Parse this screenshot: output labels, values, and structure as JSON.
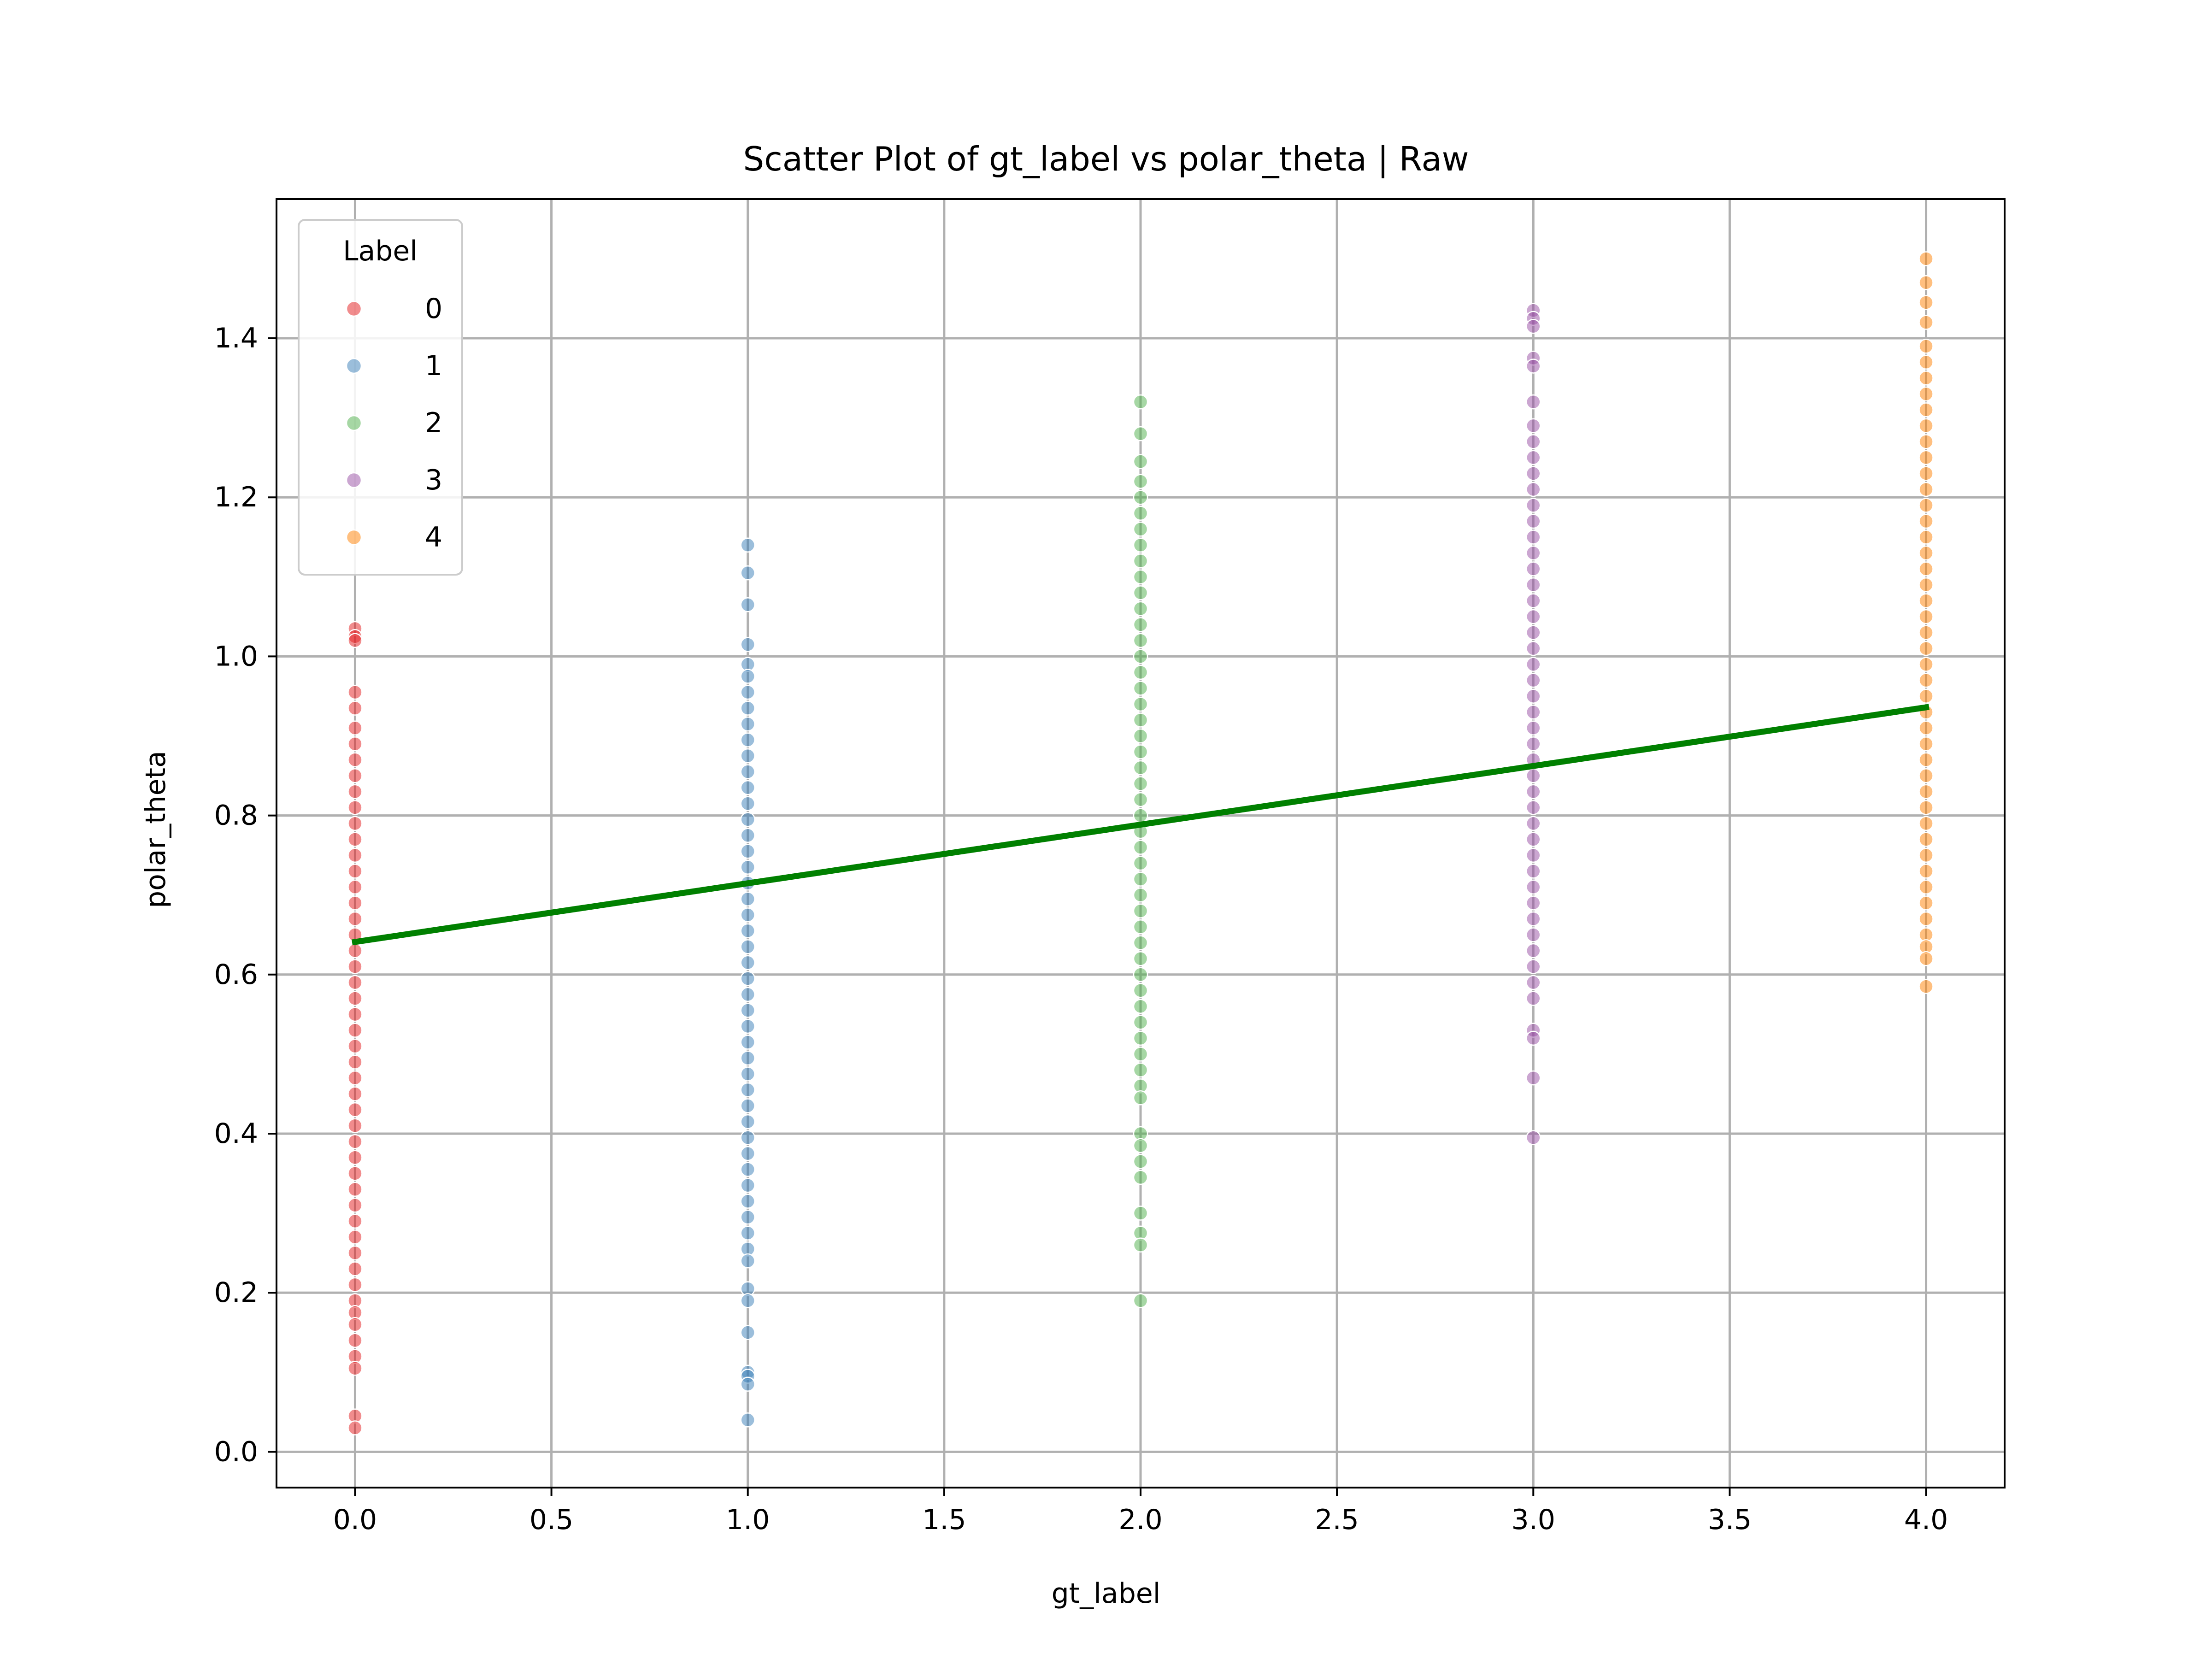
{
  "chart_data": {
    "type": "scatter",
    "title": "Scatter Plot of gt_label vs polar_theta | Raw",
    "xlabel": "gt_label",
    "ylabel": "polar_theta",
    "xlim": [
      -0.2,
      4.2
    ],
    "ylim": [
      -0.045,
      1.575
    ],
    "xticks": [
      0.0,
      0.5,
      1.0,
      1.5,
      2.0,
      2.5,
      3.0,
      3.5,
      4.0
    ],
    "xtick_labels": [
      "0.0",
      "0.5",
      "1.0",
      "1.5",
      "2.0",
      "2.5",
      "3.0",
      "3.5",
      "4.0"
    ],
    "yticks": [
      0.0,
      0.2,
      0.4,
      0.6,
      0.8,
      1.0,
      1.2,
      1.4
    ],
    "ytick_labels": [
      "0.0",
      "0.2",
      "0.4",
      "0.6",
      "0.8",
      "1.0",
      "1.2",
      "1.4"
    ],
    "grid": true,
    "legend": {
      "title": "Label",
      "placement": "top-left"
    },
    "series": [
      {
        "name": "0",
        "color": "#e41a1c",
        "x": 0,
        "y": [
          1.035,
          1.025,
          1.02,
          0.955,
          0.935,
          0.91,
          0.89,
          0.87,
          0.85,
          0.83,
          0.81,
          0.79,
          0.77,
          0.75,
          0.73,
          0.71,
          0.69,
          0.67,
          0.65,
          0.63,
          0.61,
          0.59,
          0.57,
          0.55,
          0.53,
          0.51,
          0.49,
          0.47,
          0.45,
          0.43,
          0.41,
          0.39,
          0.37,
          0.35,
          0.33,
          0.31,
          0.29,
          0.27,
          0.25,
          0.23,
          0.21,
          0.19,
          0.175,
          0.16,
          0.14,
          0.12,
          0.105,
          0.045,
          0.03
        ]
      },
      {
        "name": "1",
        "color": "#377eb8",
        "x": 1,
        "y": [
          1.14,
          1.105,
          1.065,
          1.015,
          0.99,
          0.975,
          0.955,
          0.935,
          0.915,
          0.895,
          0.875,
          0.855,
          0.835,
          0.815,
          0.795,
          0.775,
          0.755,
          0.735,
          0.715,
          0.695,
          0.675,
          0.655,
          0.635,
          0.615,
          0.595,
          0.575,
          0.555,
          0.535,
          0.515,
          0.495,
          0.475,
          0.455,
          0.435,
          0.415,
          0.395,
          0.375,
          0.355,
          0.335,
          0.315,
          0.295,
          0.275,
          0.255,
          0.24,
          0.205,
          0.19,
          0.15,
          0.1,
          0.095,
          0.085,
          0.04
        ]
      },
      {
        "name": "2",
        "color": "#4daf4a",
        "x": 2,
        "y": [
          1.32,
          1.28,
          1.245,
          1.22,
          1.2,
          1.18,
          1.16,
          1.14,
          1.12,
          1.1,
          1.08,
          1.06,
          1.04,
          1.02,
          1.0,
          0.98,
          0.96,
          0.94,
          0.92,
          0.9,
          0.88,
          0.86,
          0.84,
          0.82,
          0.8,
          0.78,
          0.76,
          0.74,
          0.72,
          0.7,
          0.68,
          0.66,
          0.64,
          0.62,
          0.6,
          0.58,
          0.56,
          0.54,
          0.52,
          0.5,
          0.48,
          0.46,
          0.445,
          0.4,
          0.385,
          0.365,
          0.345,
          0.3,
          0.275,
          0.26,
          0.19
        ]
      },
      {
        "name": "3",
        "color": "#984ea3",
        "x": 3,
        "y": [
          1.435,
          1.425,
          1.415,
          1.375,
          1.365,
          1.32,
          1.29,
          1.27,
          1.25,
          1.23,
          1.21,
          1.19,
          1.17,
          1.15,
          1.13,
          1.11,
          1.09,
          1.07,
          1.05,
          1.03,
          1.01,
          0.99,
          0.97,
          0.95,
          0.93,
          0.91,
          0.89,
          0.87,
          0.85,
          0.83,
          0.81,
          0.79,
          0.77,
          0.75,
          0.73,
          0.71,
          0.69,
          0.67,
          0.65,
          0.63,
          0.61,
          0.59,
          0.57,
          0.53,
          0.52,
          0.47,
          0.395
        ]
      },
      {
        "name": "4",
        "color": "#ff7f00",
        "x": 4,
        "y": [
          1.5,
          1.47,
          1.445,
          1.42,
          1.39,
          1.37,
          1.35,
          1.33,
          1.31,
          1.29,
          1.27,
          1.25,
          1.23,
          1.21,
          1.19,
          1.17,
          1.15,
          1.13,
          1.11,
          1.09,
          1.07,
          1.05,
          1.03,
          1.01,
          0.99,
          0.97,
          0.95,
          0.93,
          0.91,
          0.89,
          0.87,
          0.85,
          0.83,
          0.81,
          0.79,
          0.77,
          0.75,
          0.73,
          0.71,
          0.69,
          0.67,
          0.65,
          0.635,
          0.62,
          0.585
        ]
      }
    ],
    "regression_line": {
      "color": "#008000",
      "x": [
        0,
        4
      ],
      "y": [
        0.641,
        0.936
      ]
    }
  }
}
